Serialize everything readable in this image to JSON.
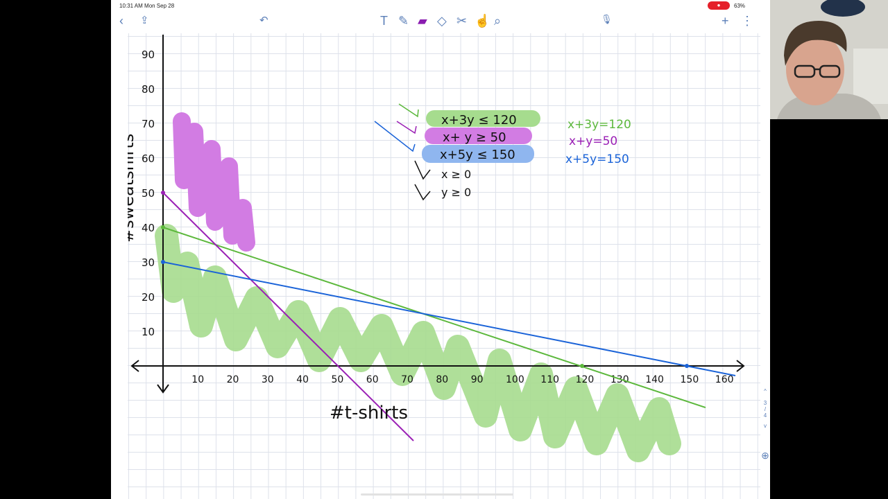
{
  "status": {
    "time": "10:31 AM  Mon Sep 28",
    "battery": "63%",
    "record_icon": "record-icon"
  },
  "toolbar": {
    "back": "‹",
    "share": "⇪",
    "undo": "↶",
    "text_tool": "T",
    "pen": "✎",
    "highlighter": "▰",
    "eraser": "◇",
    "lasso": "✂",
    "shapes": "☝",
    "zoom": "⌕",
    "mic": "🎙",
    "add": "+",
    "more": "⋮"
  },
  "page_indicator": {
    "up": "^",
    "current": "3",
    "sep": "/",
    "total": "4",
    "down": "v",
    "zoom_icon": "⊕"
  },
  "graph": {
    "x_label": "#t-shirts",
    "y_label": "#sweatshirts",
    "x_ticks": [
      "10",
      "20",
      "30",
      "40",
      "50",
      "60",
      "70",
      "80",
      "90",
      "100",
      "110",
      "120",
      "130",
      "140",
      "150",
      "160"
    ],
    "y_ticks": [
      "10",
      "20",
      "30",
      "40",
      "50",
      "60",
      "70",
      "80",
      "90"
    ],
    "inequalities": [
      "x+3y ≤ 120",
      "x+ y ≥ 50",
      "x+5y ≤ 150",
      "x ≥ 0",
      "y ≥ 0"
    ],
    "equations": [
      "x+3y=120",
      "x+y=50",
      "x+5y=150"
    ],
    "colors": {
      "green": "#5cb83c",
      "purple": "#9a1fb5",
      "blue": "#1a63d8",
      "green_hl": "#a6dc8e",
      "purple_hl": "#d27ce3",
      "blue_hl": "#8fb6ef"
    }
  }
}
